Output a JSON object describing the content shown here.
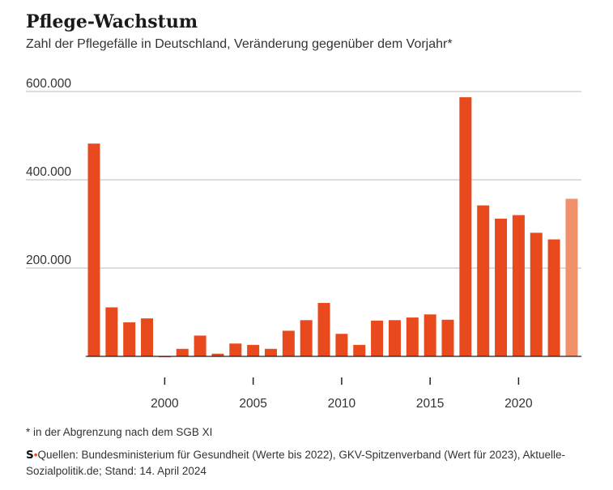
{
  "title": "Pflege-Wachstum",
  "subtitle": "Zahl der Pflegefälle in Deutschland, Veränderung gegenüber dem Vorjahr*",
  "footnote": "* in der Abgrenzung nach dem SGB XI",
  "source": {
    "logo": "S",
    "separator": "•",
    "text": "Quellen: Bundesministerium für Gesundheit (Werte bis 2022), GKV-Spitzenverband (Wert für 2023), Aktuelle-Sozialpolitik.de; Stand: 14. April 2024"
  },
  "colors": {
    "bar": "#e8491d",
    "bar_highlight": "#f0916c",
    "grid": "#bbbbbb",
    "axis": "#222222"
  },
  "chart_data": {
    "type": "bar",
    "x": [
      1996,
      1997,
      1998,
      1999,
      2000,
      2001,
      2002,
      2003,
      2004,
      2005,
      2006,
      2007,
      2008,
      2009,
      2010,
      2011,
      2012,
      2013,
      2014,
      2015,
      2016,
      2017,
      2018,
      2019,
      2020,
      2021,
      2022,
      2023
    ],
    "values": [
      482000,
      111000,
      77000,
      86000,
      -2000,
      17000,
      47000,
      6000,
      29000,
      26000,
      17000,
      58000,
      82000,
      121000,
      51000,
      26000,
      81000,
      82000,
      88000,
      95000,
      83000,
      587000,
      342000,
      312000,
      320000,
      280000,
      265000,
      357000
    ],
    "highlight": [
      2023
    ],
    "yticks": [
      200000,
      400000,
      600000
    ],
    "ytick_labels": [
      "200.000",
      "400.000",
      "600.000"
    ],
    "xticks": [
      2000,
      2005,
      2010,
      2015,
      2020
    ],
    "xtick_labels": [
      "2000",
      "2005",
      "2010",
      "2015",
      "2020"
    ],
    "ylim": [
      0,
      600000
    ],
    "grid": true,
    "xlabel": "",
    "ylabel": ""
  }
}
